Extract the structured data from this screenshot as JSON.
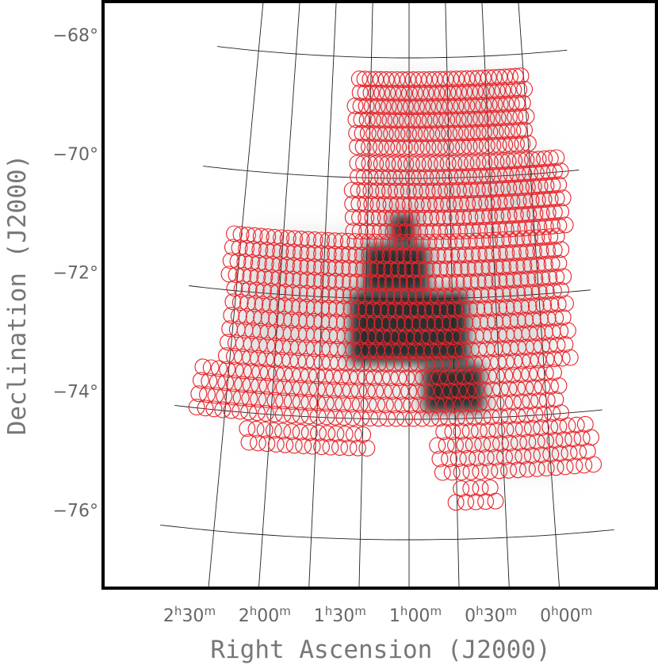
{
  "chart_data": {
    "type": "scatter",
    "title": "",
    "xlabel": "Right Ascension (J2000)",
    "ylabel": "Declination (J2000)",
    "x_ticks": [
      {
        "value_h": 2.5,
        "h": "2",
        "m": "30"
      },
      {
        "value_h": 2.0,
        "h": "2",
        "m": "00"
      },
      {
        "value_h": 1.5,
        "h": "1",
        "m": "30"
      },
      {
        "value_h": 1.0,
        "h": "1",
        "m": "00"
      },
      {
        "value_h": 0.5,
        "h": "0",
        "m": "30"
      },
      {
        "value_h": 0.0,
        "h": "0",
        "m": "00"
      }
    ],
    "y_ticks": [
      {
        "value": -68,
        "label": "−68°"
      },
      {
        "value": -70,
        "label": "−70°"
      },
      {
        "value": -72,
        "label": "−72°"
      },
      {
        "value": -74,
        "label": "−74°"
      },
      {
        "value": -76,
        "label": "−76°"
      }
    ],
    "dec_range": [
      -77,
      -67
    ],
    "ra_range_h": [
      -0.33,
      2.67
    ],
    "grid": true,
    "grid_ra_hours": [
      2.333,
      2.0,
      1.667,
      1.333,
      1.0,
      0.667,
      0.333,
      0.0
    ],
    "grid_dec_deg": [
      -68,
      -70,
      -72,
      -74,
      -76
    ],
    "field_color": "#e8242b",
    "field_radius_deg": 0.13,
    "background_map": "HI column density greyscale (Small Magellanic Cloud)",
    "field_regions": [
      {
        "ra_min": 0.0,
        "ra_max": 1.47,
        "dec_min": -69.6,
        "dec_max": -68.3
      },
      {
        "ra_min": -0.25,
        "ra_max": 1.47,
        "dec_min": -71.0,
        "dec_max": -69.6
      },
      {
        "ra_min": -0.2,
        "ra_max": 2.4,
        "dec_min": -73.2,
        "dec_max": -71.0
      },
      {
        "ra_min": -0.1,
        "ra_max": 2.55,
        "dec_min": -74.1,
        "dec_max": -73.2
      },
      {
        "ra_min": 1.3,
        "ra_max": 2.2,
        "dec_min": -74.6,
        "dec_max": -74.1
      },
      {
        "ra_min": -0.3,
        "ra_max": 0.8,
        "dec_min": -75.0,
        "dec_max": -74.1
      },
      {
        "ra_min": 0.4,
        "ra_max": 0.7,
        "dec_min": -75.5,
        "dec_max": -75.0
      }
    ],
    "dense_regions": [
      {
        "ra_min": 0.55,
        "ra_max": 1.45,
        "dec_min": -73.1,
        "dec_max": -71.9
      },
      {
        "ra_min": 0.85,
        "ra_max": 1.35,
        "dec_min": -71.9,
        "dec_max": -71.1
      },
      {
        "ra_min": 0.95,
        "ra_max": 1.15,
        "dec_min": -71.1,
        "dec_max": -70.6
      },
      {
        "ra_min": 0.45,
        "ra_max": 0.9,
        "dec_min": -73.9,
        "dec_max": -73.1
      }
    ]
  }
}
